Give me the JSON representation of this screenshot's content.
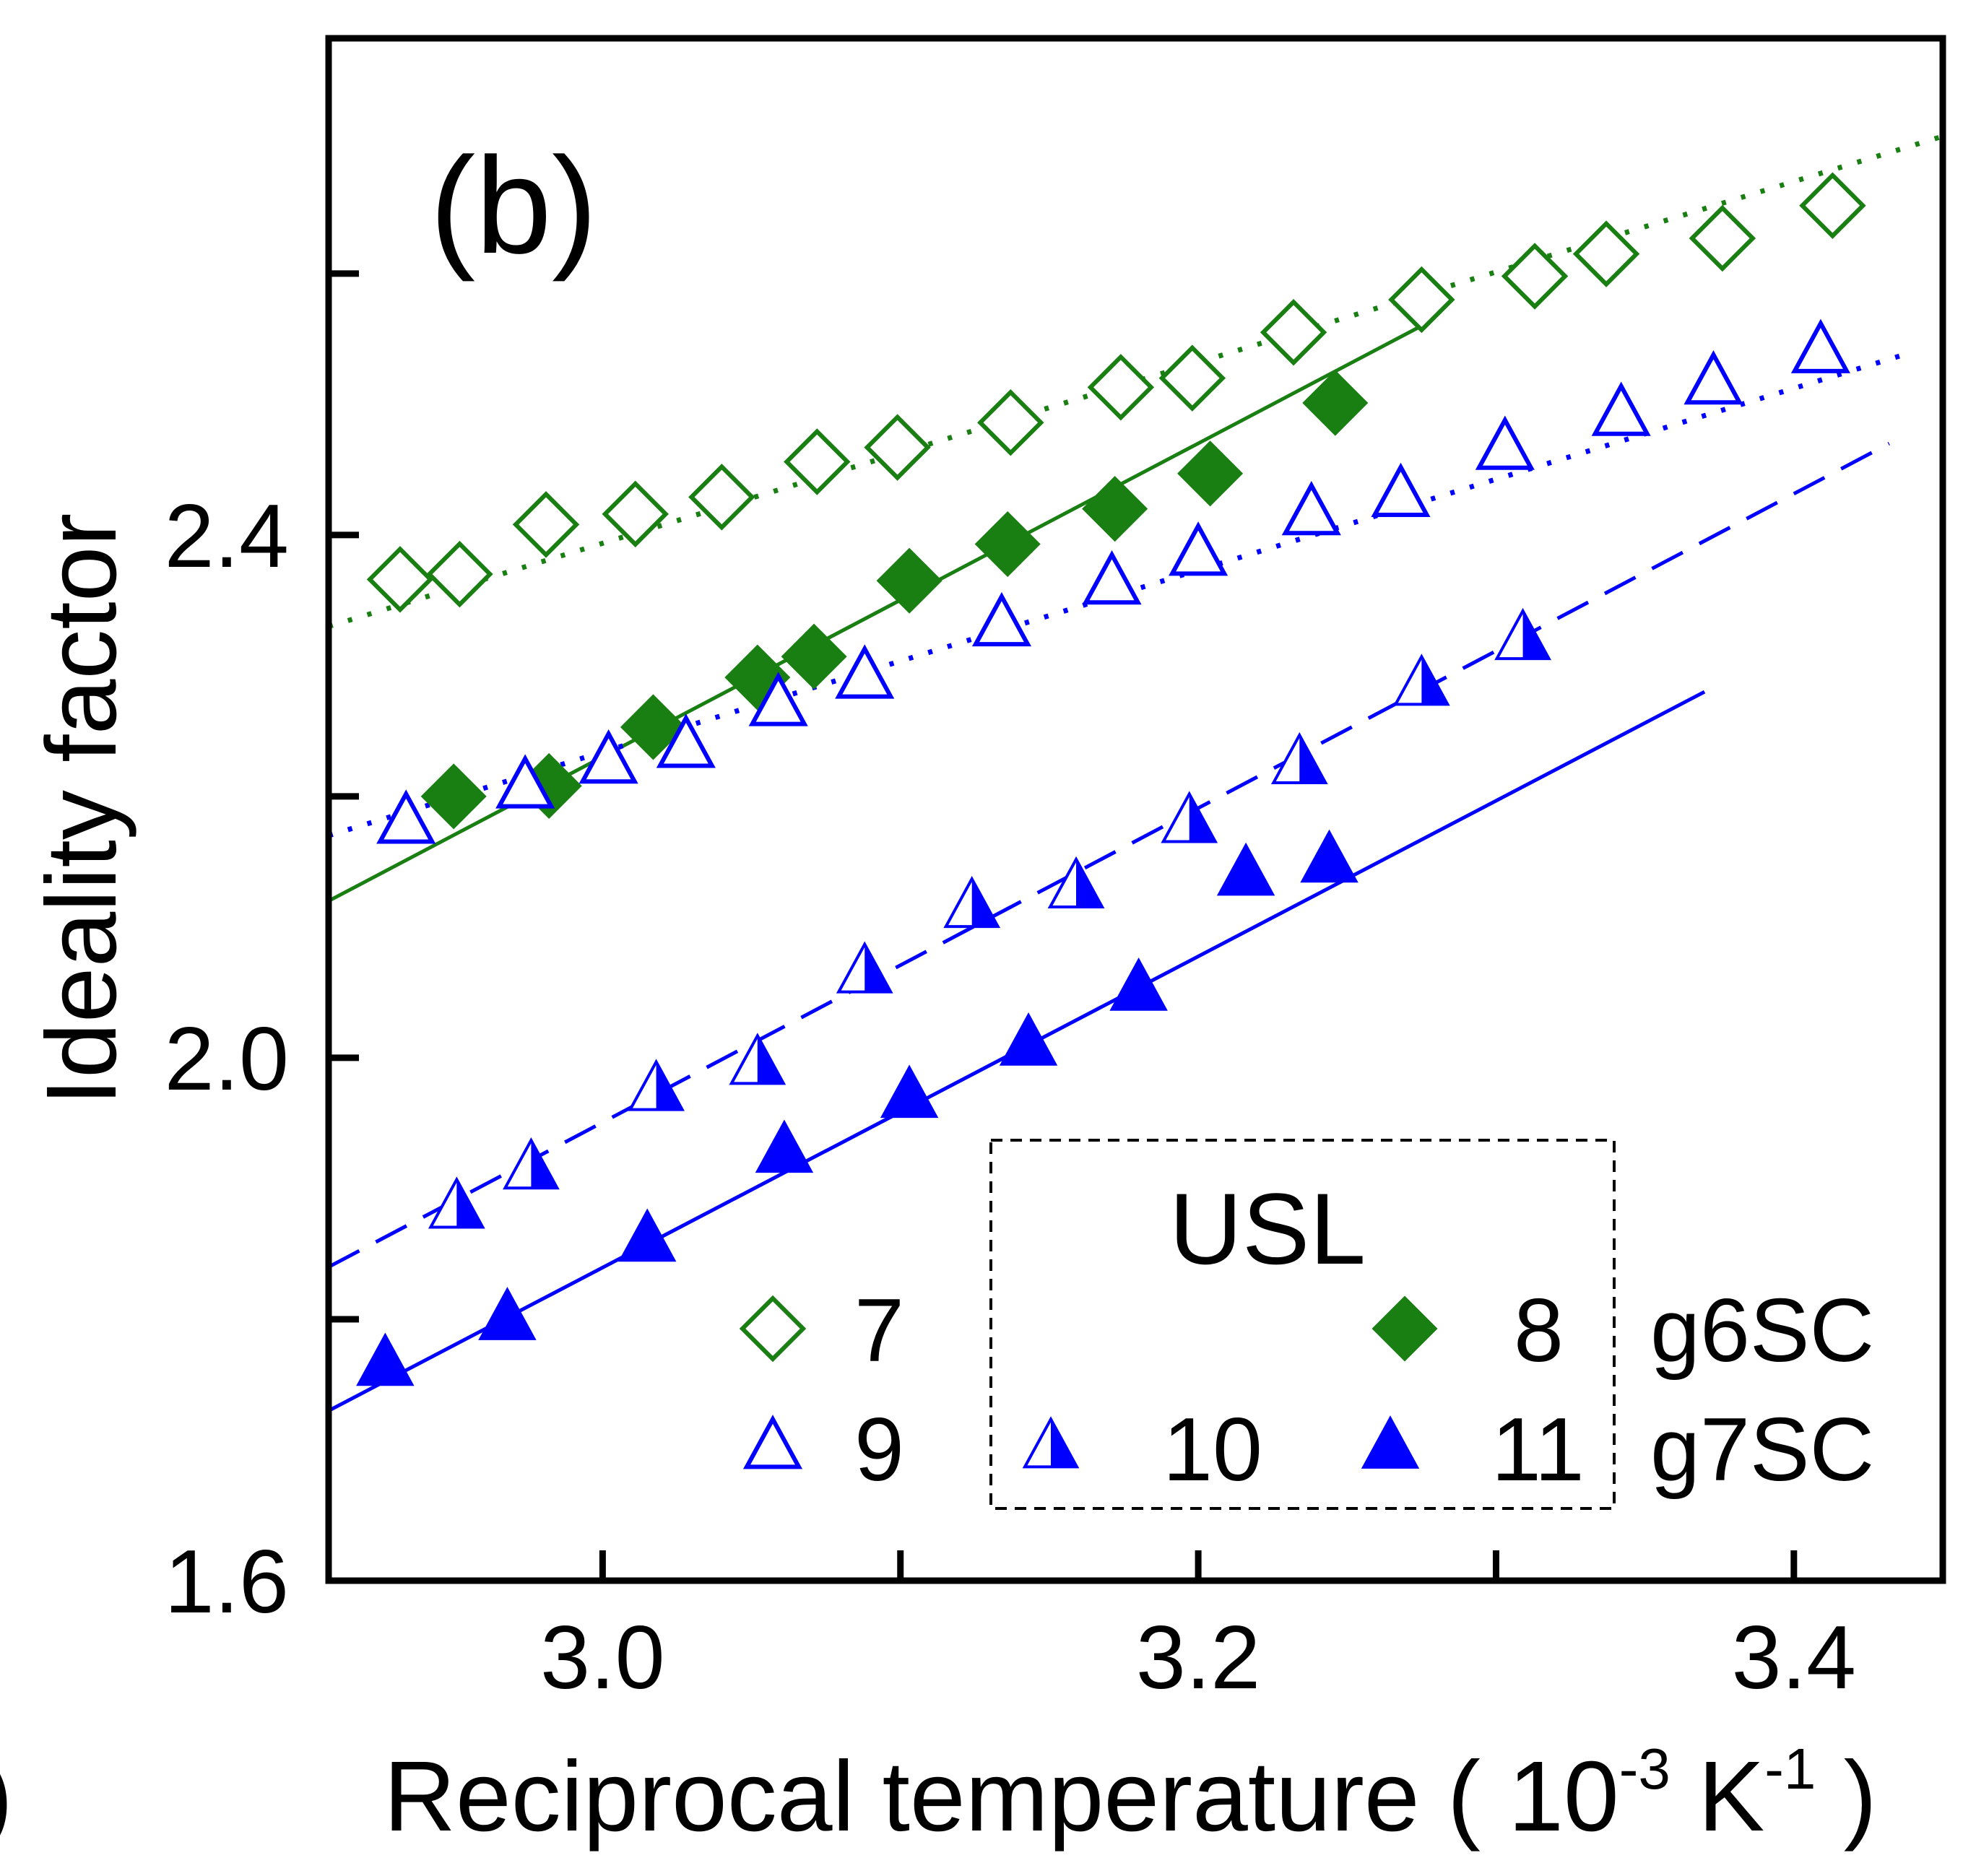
{
  "chart_data": {
    "type": "scatter",
    "panel_label": "(b)",
    "xlabel": {
      "main": "Reciprocal temperature ( 10",
      "exp1": "-3",
      "unit": " K",
      "exp2": "-1",
      "close": " )"
    },
    "ylabel": "Ideality factor",
    "xlim": [
      2.908,
      3.45
    ],
    "ylim": [
      1.6,
      2.78
    ],
    "x_ticks": [
      3.0,
      3.1,
      3.2,
      3.3,
      3.4
    ],
    "x_tick_labels": [
      "3.0",
      "",
      "3.2",
      "",
      "3.4"
    ],
    "y_ticks": [
      1.6,
      1.8,
      2.0,
      2.2,
      2.4,
      2.6
    ],
    "y_tick_labels": [
      "1.6",
      "",
      "2.0",
      "",
      "2.4",
      ""
    ],
    "edge_fragment": ")",
    "grid": false,
    "legend": {
      "placement": "bottom-right",
      "title": "USL",
      "rows": [
        {
          "items": [
            {
              "series": "7",
              "label": "7"
            },
            {
              "series": "8",
              "label": "8"
            }
          ],
          "group": "g6SC"
        },
        {
          "items": [
            {
              "series": "9",
              "label": "9"
            },
            {
              "series": "10",
              "label": "10"
            },
            {
              "series": "11",
              "label": "11"
            }
          ],
          "group": "g7SC"
        }
      ]
    },
    "series": [
      {
        "name": "7",
        "marker": "diamond-open",
        "color": "#1a7f12",
        "line": "dotted",
        "x": [
          2.932,
          2.952,
          2.981,
          3.011,
          3.04,
          3.072,
          3.099,
          3.137,
          3.174,
          3.198,
          3.232,
          3.275,
          3.313,
          3.337,
          3.376,
          3.413
        ],
        "y": [
          2.366,
          2.37,
          2.408,
          2.416,
          2.429,
          2.456,
          2.467,
          2.486,
          2.513,
          2.52,
          2.555,
          2.58,
          2.598,
          2.615,
          2.627,
          2.652
        ],
        "fit": {
          "x": [
            2.908,
            3.45
          ],
          "y": [
            2.33,
            2.705
          ]
        }
      },
      {
        "name": "8",
        "marker": "diamond-filled",
        "color": "#1a7f12",
        "line": "solid",
        "x": [
          2.95,
          2.982,
          3.017,
          3.052,
          3.071,
          3.103,
          3.136,
          3.172,
          3.204,
          3.246
        ],
        "y": [
          2.2,
          2.208,
          2.253,
          2.291,
          2.307,
          2.365,
          2.393,
          2.42,
          2.447,
          2.501
        ],
        "fit": {
          "x": [
            2.908,
            3.275
          ],
          "y": [
            2.12,
            2.56
          ]
        }
      },
      {
        "name": "9",
        "marker": "triangle-open",
        "color": "#0000ff",
        "line": "dotted",
        "x": [
          2.934,
          2.974,
          3.002,
          3.028,
          3.059,
          3.088,
          3.134,
          3.171,
          3.2,
          3.238,
          3.268,
          3.303,
          3.342,
          3.373,
          3.409
        ],
        "y": [
          2.18,
          2.207,
          2.226,
          2.238,
          2.27,
          2.291,
          2.331,
          2.363,
          2.385,
          2.416,
          2.43,
          2.466,
          2.492,
          2.516,
          2.54
        ],
        "fit": {
          "x": [
            2.908,
            3.44
          ],
          "y": [
            2.17,
            2.54
          ]
        }
      },
      {
        "name": "10",
        "marker": "triangle-half",
        "color": "#0000ff",
        "line": "dashed",
        "x": [
          2.951,
          2.976,
          3.018,
          3.052,
          3.088,
          3.124,
          3.159,
          3.197,
          3.234,
          3.275,
          3.309
        ],
        "y": [
          1.885,
          1.915,
          1.975,
          1.995,
          2.065,
          2.115,
          2.13,
          2.18,
          2.225,
          2.285,
          2.32
        ],
        "fit": {
          "x": [
            2.908,
            3.432
          ],
          "y": [
            1.84,
            2.47
          ]
        }
      },
      {
        "name": "11",
        "marker": "triangle-filled",
        "color": "#0000ff",
        "line": "solid",
        "x": [
          2.927,
          2.968,
          3.015,
          3.061,
          3.103,
          3.143,
          3.18,
          3.216,
          3.244
        ],
        "y": [
          1.765,
          1.8,
          1.86,
          1.928,
          1.97,
          2.01,
          2.052,
          2.14,
          2.15
        ],
        "fit": {
          "x": [
            2.908,
            3.37
          ],
          "y": [
            1.73,
            2.28
          ]
        }
      }
    ]
  }
}
